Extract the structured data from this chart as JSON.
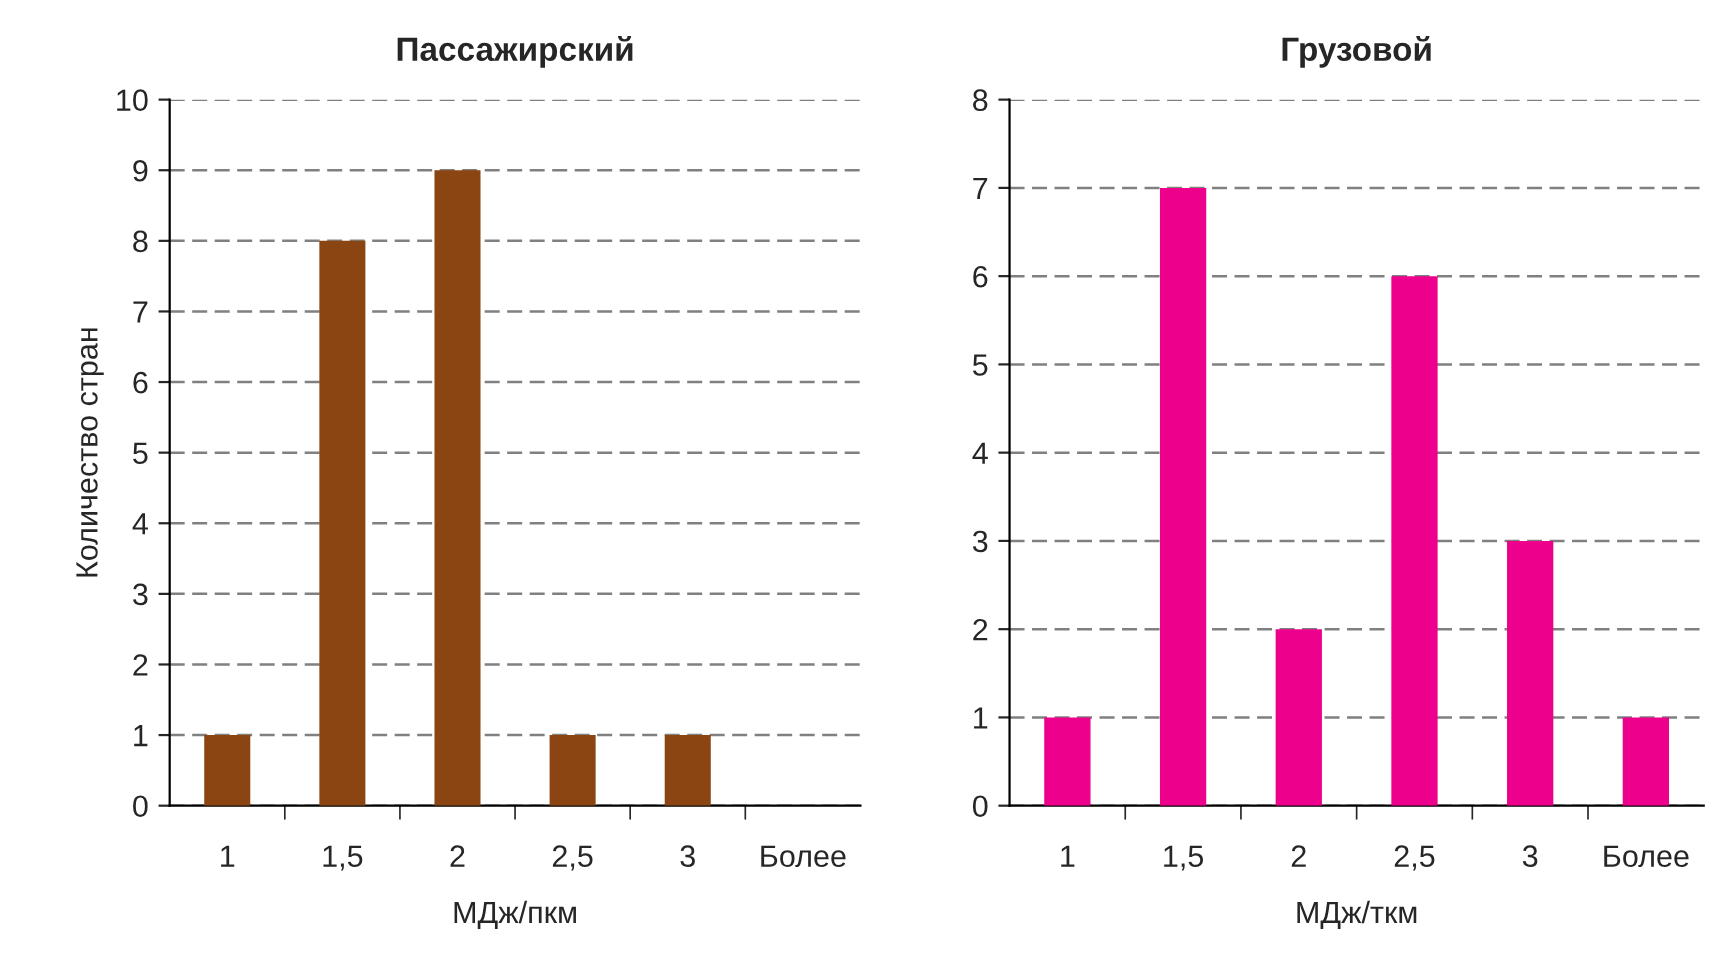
{
  "chart_data": [
    {
      "type": "bar",
      "title": "Пассажирский",
      "xlabel": "МДж/пкм",
      "ylabel": "Количество стран",
      "categories": [
        "1",
        "1,5",
        "2",
        "2,5",
        "3",
        "Более"
      ],
      "values": [
        1,
        8,
        9,
        1,
        1,
        null
      ],
      "color": "#8b4513",
      "ylim": [
        0,
        10
      ],
      "yticks": [
        0,
        1,
        2,
        3,
        4,
        5,
        6,
        7,
        8,
        9,
        10
      ],
      "grid": "y",
      "line_style": "dashed"
    },
    {
      "type": "bar",
      "title": "Грузовой",
      "xlabel": "МДж/ткм",
      "categories": [
        "1",
        "1,5",
        "2",
        "2,5",
        "3",
        "Более"
      ],
      "values": [
        1,
        7,
        2,
        6,
        3,
        1
      ],
      "color": "#ec008c",
      "ylim": [
        0,
        8
      ],
      "yticks": [
        0,
        1,
        2,
        3,
        4,
        5,
        6,
        7,
        8
      ],
      "grid": "y",
      "line_style": "dashed"
    }
  ]
}
